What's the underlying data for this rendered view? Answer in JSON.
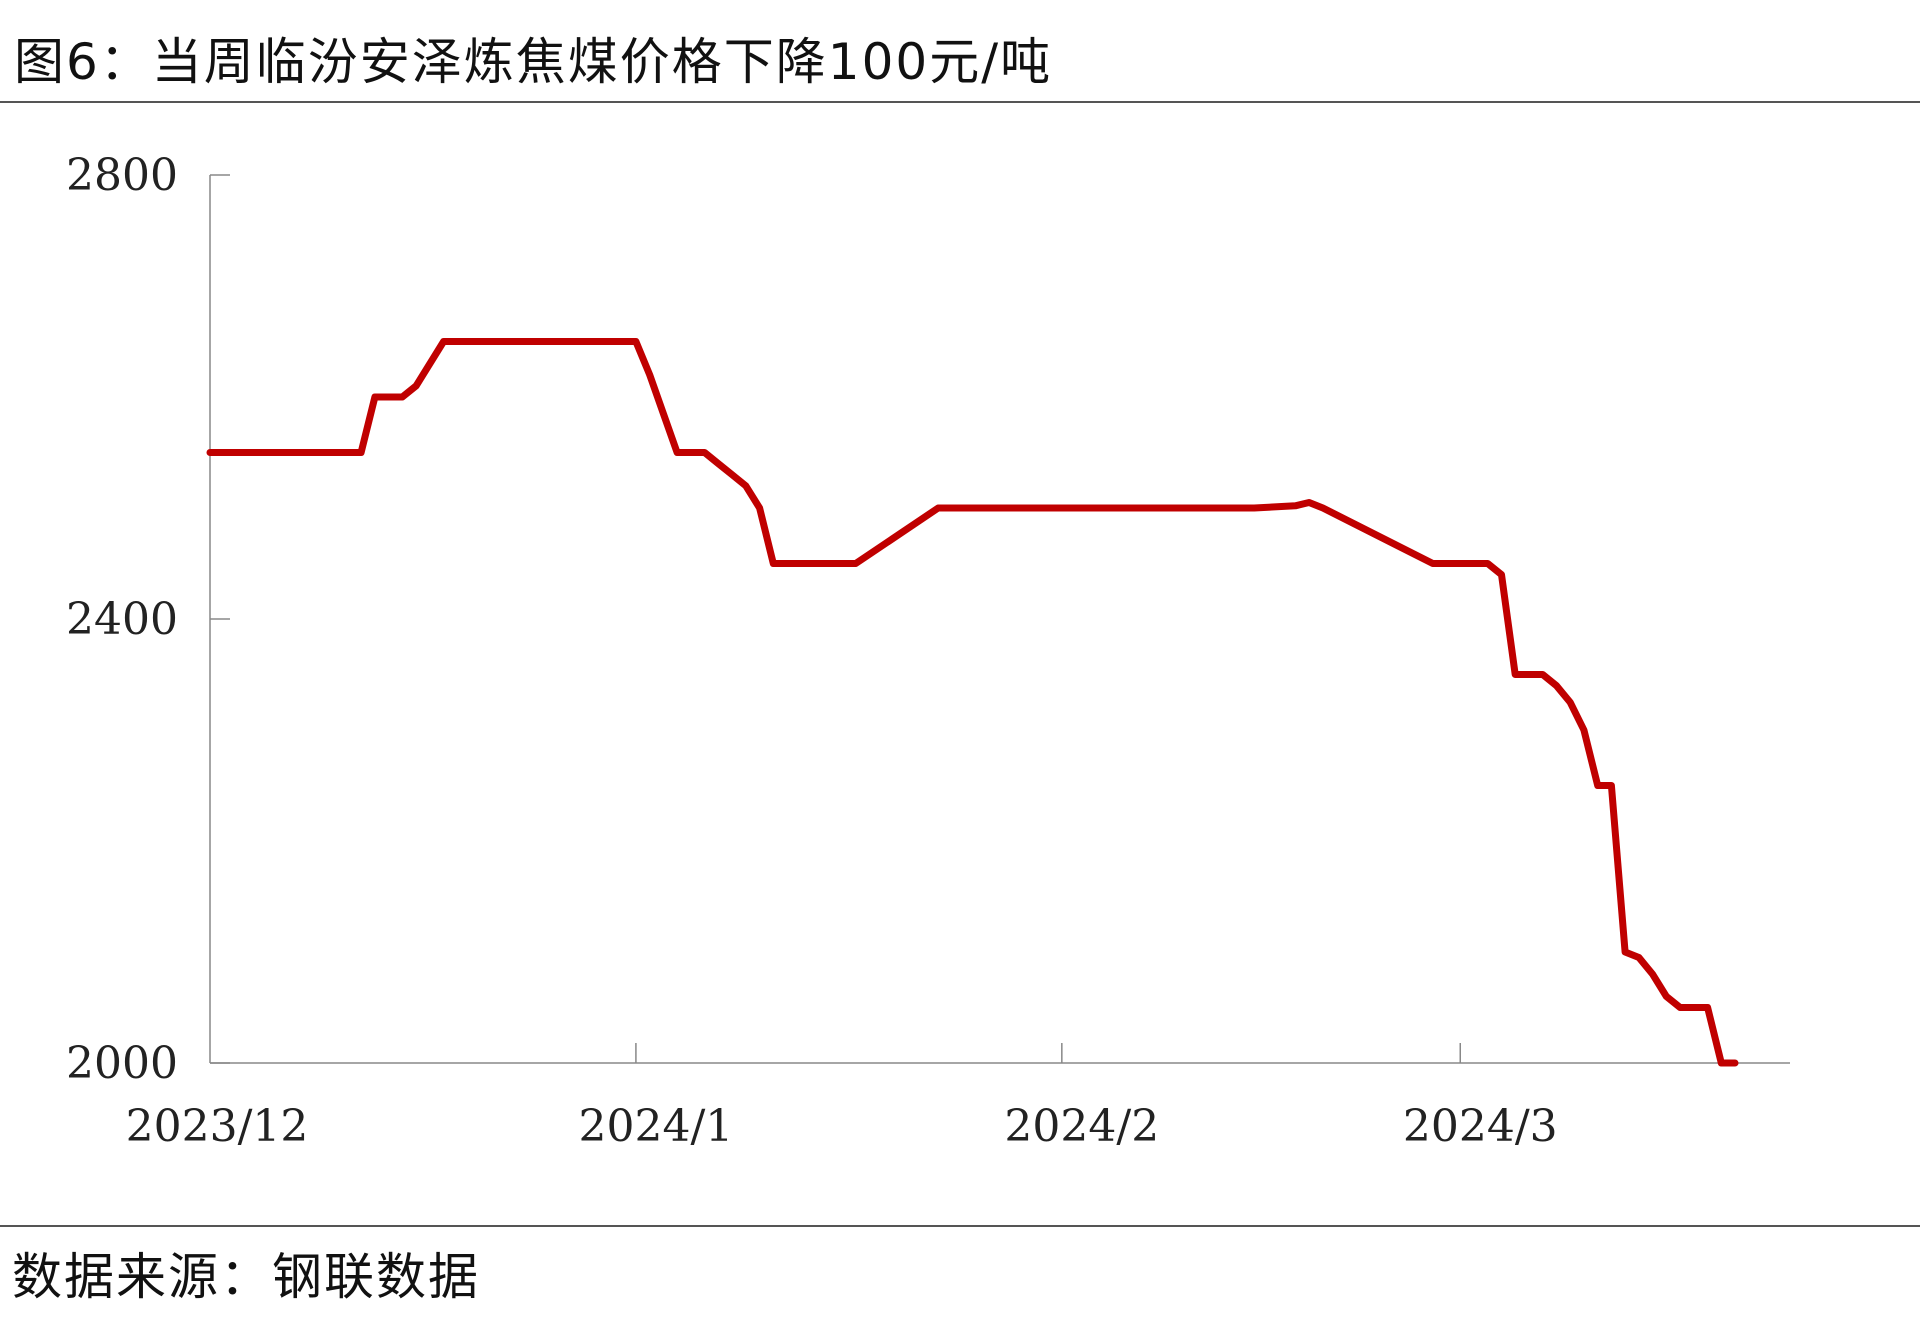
{
  "title": "图6：当周临汾安泽炼焦煤价格下降100元/吨",
  "source": "数据来源：钢联数据",
  "colors": {
    "series": "#c00000",
    "axis": "#888888",
    "rule": "#555555"
  },
  "chart_data": {
    "type": "line",
    "title": "",
    "xlabel": "",
    "ylabel": "",
    "ylim": [
      2000,
      2800
    ],
    "yticks": [
      2000,
      2400,
      2800
    ],
    "xlim": [
      "2023-12-01",
      "2024-03-25"
    ],
    "xticks": [
      {
        "date": "2023-12-01",
        "label": "2023/12"
      },
      {
        "date": "2024-01-01",
        "label": "2024/1"
      },
      {
        "date": "2024-02-01",
        "label": "2024/2"
      },
      {
        "date": "2024-03-01",
        "label": "2024/3"
      }
    ],
    "grid": false,
    "legend": "none",
    "series": [
      {
        "x": [
          "2023-12-01",
          "2023-12-12",
          "2023-12-13",
          "2023-12-15",
          "2023-12-16",
          "2023-12-18",
          "2023-12-19",
          "2023-12-20",
          "2023-12-21",
          "2023-12-22",
          "2023-12-23",
          "2024-01-01",
          "2024-01-02",
          "2024-01-03",
          "2024-01-04",
          "2024-01-05",
          "2024-01-06",
          "2024-01-07",
          "2024-01-08",
          "2024-01-09",
          "2024-01-10",
          "2024-01-11",
          "2024-01-12",
          "2024-01-13",
          "2024-01-14",
          "2024-01-15",
          "2024-01-16",
          "2024-01-17",
          "2024-01-23",
          "2024-01-24",
          "2024-01-25",
          "2024-01-26",
          "2024-02-10",
          "2024-02-15",
          "2024-02-18",
          "2024-02-19",
          "2024-02-20",
          "2024-02-28",
          "2024-02-29",
          "2024-03-01",
          "2024-03-02",
          "2024-03-03",
          "2024-03-04",
          "2024-03-05",
          "2024-03-06",
          "2024-03-07",
          "2024-03-08",
          "2024-03-09",
          "2024-03-10",
          "2024-03-11",
          "2024-03-12",
          "2024-03-13",
          "2024-03-14",
          "2024-03-15",
          "2024-03-16",
          "2024-03-17",
          "2024-03-18",
          "2024-03-19",
          "2024-03-20",
          "2024-03-21"
        ],
        "y": [
          2550,
          2550,
          2600,
          2600,
          2610,
          2650,
          2650,
          2650,
          2650,
          2650,
          2650,
          2650,
          2620,
          2585,
          2550,
          2550,
          2550,
          2540,
          2530,
          2520,
          2500,
          2450,
          2450,
          2450,
          2450,
          2450,
          2450,
          2450,
          2500,
          2500,
          2500,
          2500,
          2500,
          2500,
          2502,
          2505,
          2500,
          2450,
          2450,
          2450,
          2450,
          2450,
          2440,
          2350,
          2350,
          2350,
          2340,
          2325,
          2300,
          2250,
          2250,
          2100,
          2095,
          2080,
          2060,
          2050,
          2050,
          2050,
          2000,
          2000
        ]
      }
    ]
  }
}
